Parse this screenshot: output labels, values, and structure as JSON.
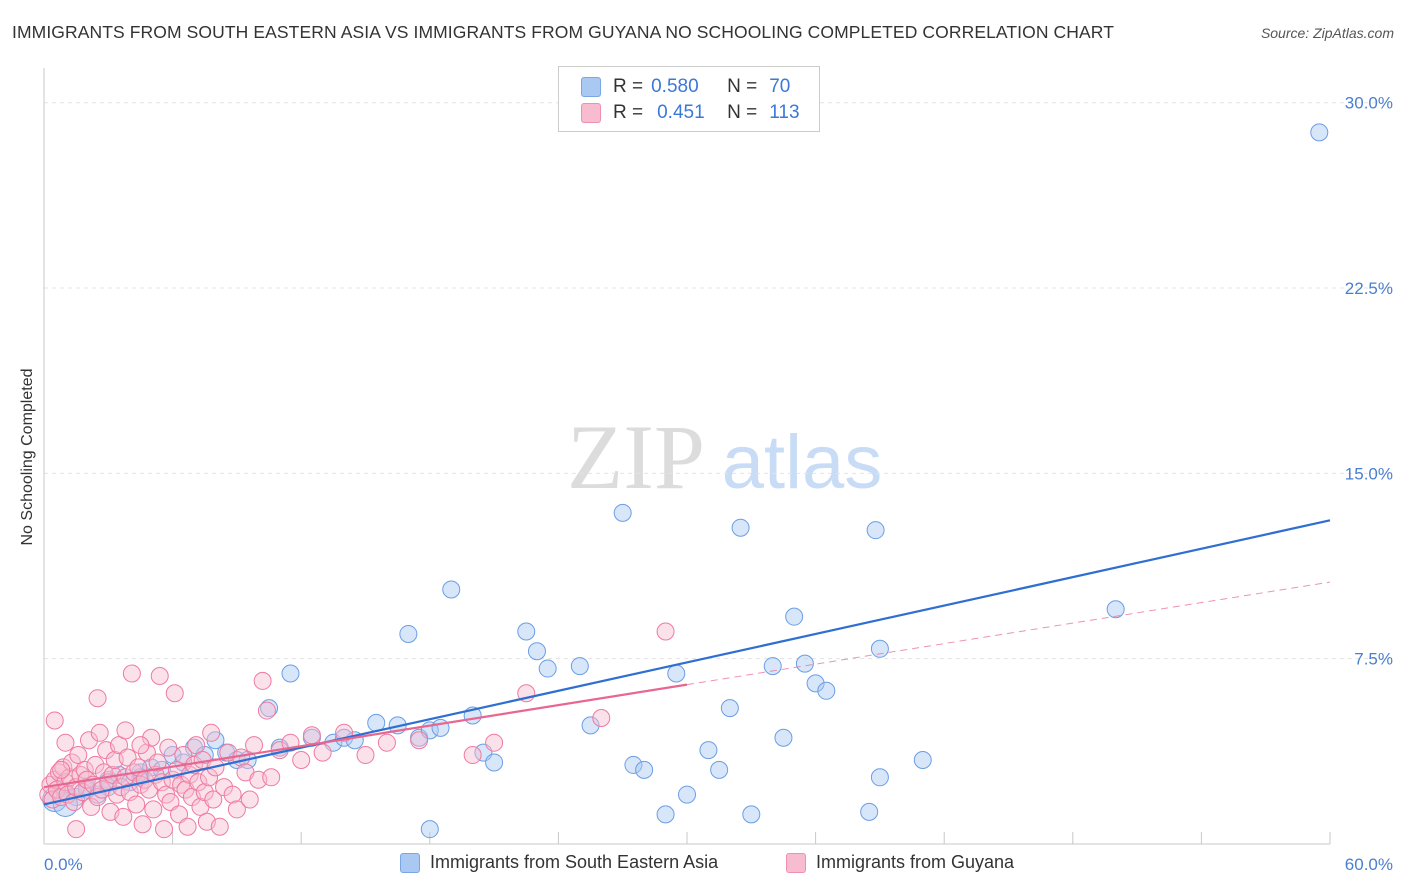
{
  "title": "IMMIGRANTS FROM SOUTH EASTERN ASIA VS IMMIGRANTS FROM GUYANA NO SCHOOLING COMPLETED CORRELATION CHART",
  "source": "Source: ZipAtlas.com",
  "ylabel": "No Schooling Completed",
  "watermark": {
    "zip": "ZIP",
    "atlas": "atlas"
  },
  "legend": {
    "r_label": "R =",
    "n_label": "N =",
    "series": [
      {
        "r": "0.580",
        "n": "70",
        "color": "#a9c8f2",
        "border": "#7aa6e4"
      },
      {
        "r": "0.451",
        "n": "113",
        "color": "#f7bcd0",
        "border": "#ee90b0"
      }
    ]
  },
  "bottom_legend": [
    "Immigrants from South Eastern Asia",
    "Immigrants from Guyana"
  ],
  "chart_data": {
    "type": "scatter",
    "xlim": [
      0,
      60
    ],
    "ylim": [
      0,
      31
    ],
    "x_tick_labels": [
      "0.0%",
      "60.0%"
    ],
    "y_ticks": [
      7.5,
      15.0,
      22.5,
      30.0
    ],
    "y_tick_labels": [
      "7.5%",
      "15.0%",
      "22.5%",
      "30.0%"
    ],
    "grid": true,
    "series": [
      {
        "name": "Immigrants from South Eastern Asia",
        "color": "#6a9ee6",
        "fill": "rgba(168,200,242,0.45)",
        "trend": {
          "x": [
            0,
            60
          ],
          "y": [
            1.6,
            13.1
          ],
          "dashed_from": null
        },
        "points": [
          [
            0.5,
            1.8
          ],
          [
            1.0,
            2.1
          ],
          [
            1.5,
            1.9
          ],
          [
            2.0,
            2.3
          ],
          [
            2.5,
            2.0
          ],
          [
            3.0,
            2.6
          ],
          [
            3.5,
            2.8
          ],
          [
            4.0,
            2.5
          ],
          [
            4.5,
            2.9
          ],
          [
            5.0,
            3.1
          ],
          [
            5.5,
            3.0
          ],
          [
            6.0,
            3.6
          ],
          [
            6.5,
            3.3
          ],
          [
            7.0,
            3.9
          ],
          [
            7.5,
            3.6
          ],
          [
            8.0,
            4.2
          ],
          [
            8.5,
            3.7
          ],
          [
            9.0,
            3.4
          ],
          [
            9.5,
            3.4
          ],
          [
            10.5,
            5.5
          ],
          [
            11.0,
            3.9
          ],
          [
            11.5,
            6.9
          ],
          [
            12.5,
            4.3
          ],
          [
            13.5,
            4.1
          ],
          [
            14.0,
            4.3
          ],
          [
            14.5,
            4.2
          ],
          [
            15.5,
            4.9
          ],
          [
            16.5,
            4.8
          ],
          [
            17.0,
            8.5
          ],
          [
            17.5,
            4.3
          ],
          [
            18.0,
            4.6
          ],
          [
            18.5,
            4.7
          ],
          [
            19.0,
            10.3
          ],
          [
            20.0,
            5.2
          ],
          [
            20.5,
            3.7
          ],
          [
            21.0,
            3.3
          ],
          [
            22.5,
            8.6
          ],
          [
            23.0,
            7.8
          ],
          [
            23.5,
            7.1
          ],
          [
            25.0,
            7.2
          ],
          [
            25.5,
            4.8
          ],
          [
            27.0,
            13.4
          ],
          [
            27.5,
            3.2
          ],
          [
            28.0,
            3.0
          ],
          [
            29.5,
            6.9
          ],
          [
            29.0,
            1.2
          ],
          [
            30.0,
            2.0
          ],
          [
            31.0,
            3.8
          ],
          [
            31.5,
            3.0
          ],
          [
            32.0,
            5.5
          ],
          [
            32.5,
            12.8
          ],
          [
            33.0,
            1.2
          ],
          [
            34.0,
            7.2
          ],
          [
            34.5,
            4.3
          ],
          [
            35.0,
            9.2
          ],
          [
            35.5,
            7.3
          ],
          [
            36.0,
            6.5
          ],
          [
            36.5,
            6.2
          ],
          [
            38.5,
            1.3
          ],
          [
            39.0,
            2.7
          ],
          [
            38.8,
            12.7
          ],
          [
            39.0,
            7.9
          ],
          [
            41.0,
            3.4
          ],
          [
            18.0,
            0.6
          ],
          [
            1.0,
            1.6
          ],
          [
            2.0,
            2.2
          ],
          [
            3.0,
            2.3
          ],
          [
            4.5,
            2.7
          ],
          [
            50.0,
            9.5
          ],
          [
            59.5,
            28.8
          ]
        ]
      },
      {
        "name": "Immigrants from Guyana",
        "color": "#ee7ba0",
        "fill": "rgba(247,188,208,0.45)",
        "trend": {
          "x": [
            0,
            60
          ],
          "y": [
            2.3,
            10.6
          ],
          "dashed_from": 30
        },
        "points": [
          [
            0.2,
            2.0
          ],
          [
            0.3,
            2.4
          ],
          [
            0.4,
            1.8
          ],
          [
            0.5,
            2.6
          ],
          [
            0.6,
            2.2
          ],
          [
            0.7,
            2.9
          ],
          [
            0.8,
            1.9
          ],
          [
            0.9,
            3.1
          ],
          [
            1.0,
            2.5
          ],
          [
            1.1,
            2.0
          ],
          [
            1.2,
            2.7
          ],
          [
            1.3,
            3.3
          ],
          [
            1.4,
            1.7
          ],
          [
            1.5,
            2.3
          ],
          [
            1.6,
            3.6
          ],
          [
            1.7,
            2.8
          ],
          [
            1.8,
            2.1
          ],
          [
            1.9,
            3.0
          ],
          [
            2.0,
            2.6
          ],
          [
            2.1,
            4.2
          ],
          [
            2.2,
            1.5
          ],
          [
            2.3,
            2.4
          ],
          [
            2.4,
            3.2
          ],
          [
            2.5,
            1.9
          ],
          [
            2.6,
            4.5
          ],
          [
            2.7,
            2.2
          ],
          [
            2.8,
            2.9
          ],
          [
            2.9,
            3.8
          ],
          [
            3.0,
            2.5
          ],
          [
            3.1,
            1.3
          ],
          [
            3.2,
            2.8
          ],
          [
            3.3,
            3.4
          ],
          [
            3.4,
            2.0
          ],
          [
            3.5,
            4.0
          ],
          [
            3.6,
            2.3
          ],
          [
            3.7,
            1.1
          ],
          [
            3.8,
            2.7
          ],
          [
            3.9,
            3.5
          ],
          [
            4.0,
            2.1
          ],
          [
            4.1,
            6.9
          ],
          [
            4.2,
            2.9
          ],
          [
            4.3,
            1.6
          ],
          [
            4.4,
            3.1
          ],
          [
            4.5,
            2.4
          ],
          [
            4.6,
            0.8
          ],
          [
            4.7,
            2.6
          ],
          [
            4.8,
            3.7
          ],
          [
            4.9,
            2.2
          ],
          [
            5.0,
            4.3
          ],
          [
            5.1,
            1.4
          ],
          [
            5.2,
            2.8
          ],
          [
            5.3,
            3.3
          ],
          [
            5.4,
            6.8
          ],
          [
            5.5,
            2.5
          ],
          [
            5.6,
            0.6
          ],
          [
            5.7,
            2.0
          ],
          [
            5.8,
            3.9
          ],
          [
            5.9,
            1.7
          ],
          [
            6.0,
            2.6
          ],
          [
            6.1,
            6.1
          ],
          [
            6.2,
            3.0
          ],
          [
            6.3,
            1.2
          ],
          [
            6.4,
            2.4
          ],
          [
            6.5,
            3.6
          ],
          [
            6.6,
            2.2
          ],
          [
            6.7,
            0.7
          ],
          [
            6.8,
            2.8
          ],
          [
            6.9,
            1.9
          ],
          [
            7.0,
            3.2
          ],
          [
            7.1,
            4.0
          ],
          [
            7.2,
            2.5
          ],
          [
            7.3,
            1.5
          ],
          [
            7.4,
            3.4
          ],
          [
            7.5,
            2.1
          ],
          [
            7.6,
            0.9
          ],
          [
            7.7,
            2.7
          ],
          [
            7.8,
            4.5
          ],
          [
            7.9,
            1.8
          ],
          [
            8.0,
            3.1
          ],
          [
            8.2,
            0.7
          ],
          [
            8.4,
            2.3
          ],
          [
            8.6,
            3.7
          ],
          [
            8.8,
            2.0
          ],
          [
            9.0,
            1.4
          ],
          [
            9.2,
            3.5
          ],
          [
            9.4,
            2.9
          ],
          [
            9.6,
            1.8
          ],
          [
            9.8,
            4.0
          ],
          [
            10.0,
            2.6
          ],
          [
            10.2,
            6.6
          ],
          [
            10.4,
            5.4
          ],
          [
            10.6,
            2.7
          ],
          [
            11.0,
            3.8
          ],
          [
            11.5,
            4.1
          ],
          [
            12.0,
            3.4
          ],
          [
            12.5,
            4.4
          ],
          [
            13.0,
            3.7
          ],
          [
            14.0,
            4.5
          ],
          [
            15.0,
            3.6
          ],
          [
            16.0,
            4.1
          ],
          [
            17.5,
            4.2
          ],
          [
            20.0,
            3.6
          ],
          [
            21.0,
            4.1
          ],
          [
            22.5,
            6.1
          ],
          [
            26.0,
            5.1
          ],
          [
            29.0,
            8.6
          ],
          [
            0.5,
            5.0
          ],
          [
            1.0,
            4.1
          ],
          [
            1.5,
            0.6
          ],
          [
            0.8,
            3.0
          ],
          [
            2.5,
            5.9
          ],
          [
            3.8,
            4.6
          ],
          [
            4.5,
            4.0
          ]
        ]
      }
    ]
  }
}
